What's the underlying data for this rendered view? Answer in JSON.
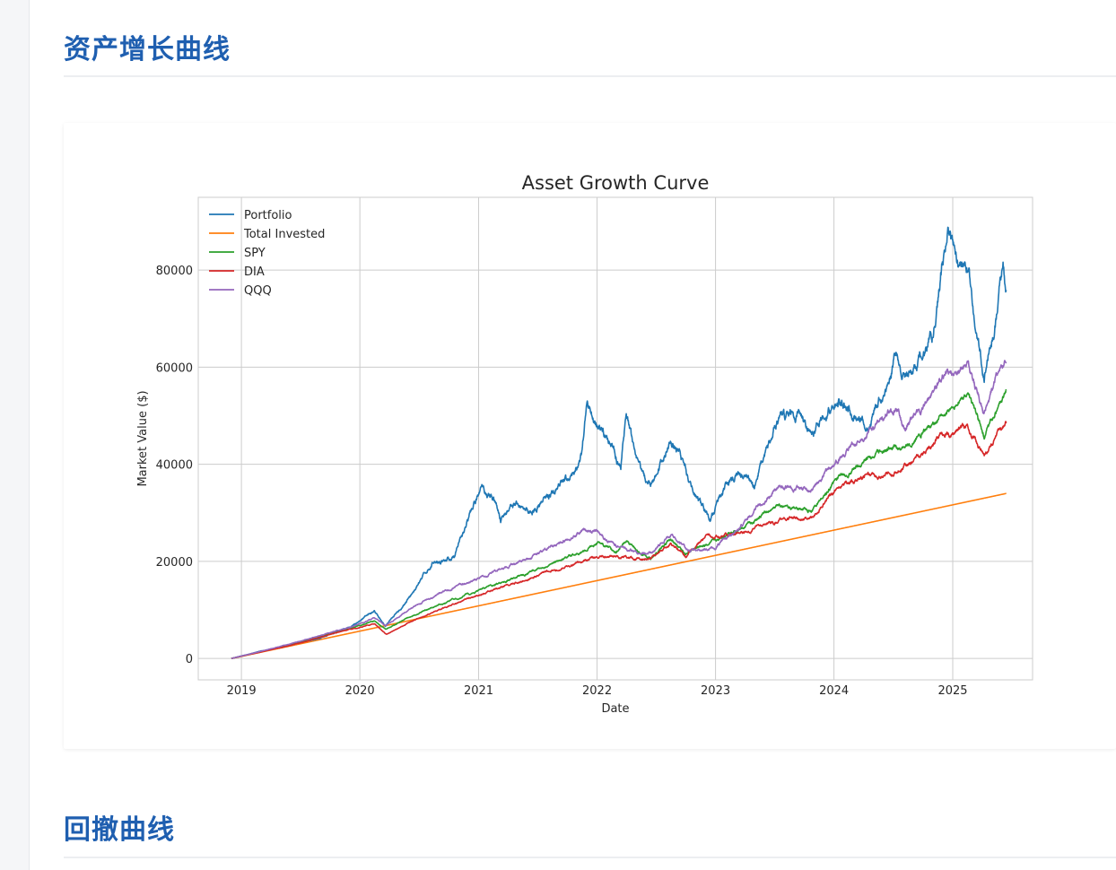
{
  "sections": [
    {
      "title": "资产增长曲线"
    },
    {
      "title": "回撤曲线"
    }
  ],
  "chart_data": {
    "type": "line",
    "title": "Asset Growth Curve",
    "xlabel": "Date",
    "ylabel": "Market Value ($)",
    "xlim": [
      "2018-08-21",
      "2025-09-04"
    ],
    "ylim": [
      -4400,
      95000
    ],
    "x_ticks": [
      "2019-01-01",
      "2020-01-01",
      "2021-01-01",
      "2022-01-01",
      "2023-01-01",
      "2024-01-01",
      "2025-01-01"
    ],
    "x_tick_labels": [
      "2019",
      "2020",
      "2021",
      "2022",
      "2023",
      "2024",
      "2025"
    ],
    "y_ticks": [
      0,
      20000,
      40000,
      60000,
      80000
    ],
    "y_tick_labels": [
      "0",
      "20000",
      "40000",
      "60000",
      "80000"
    ],
    "grid": true,
    "legend": "top-left",
    "series": [
      {
        "name": "Portfolio",
        "color": "#1f77b4",
        "noise": 0.012,
        "points": [
          [
            "2018-12-01",
            0
          ],
          [
            "2019-03-01",
            1500
          ],
          [
            "2019-06-01",
            2800
          ],
          [
            "2019-09-01",
            4200
          ],
          [
            "2019-12-01",
            6500
          ],
          [
            "2020-02-15",
            9800
          ],
          [
            "2020-03-20",
            6500
          ],
          [
            "2020-06-01",
            12500
          ],
          [
            "2020-08-15",
            20000
          ],
          [
            "2020-10-20",
            21000
          ],
          [
            "2020-12-15",
            31000
          ],
          [
            "2021-01-10",
            35000
          ],
          [
            "2021-02-20",
            33000
          ],
          [
            "2021-03-10",
            28500
          ],
          [
            "2021-04-15",
            32000
          ],
          [
            "2021-06-15",
            30500
          ],
          [
            "2021-08-15",
            34000
          ],
          [
            "2021-10-15",
            37000
          ],
          [
            "2021-11-15",
            42000
          ],
          [
            "2021-12-01",
            52000
          ],
          [
            "2022-01-15",
            47000
          ],
          [
            "2022-02-15",
            44000
          ],
          [
            "2022-03-15",
            40000
          ],
          [
            "2022-04-01",
            50500
          ],
          [
            "2022-05-01",
            40000
          ],
          [
            "2022-06-15",
            35000
          ],
          [
            "2022-08-15",
            45000
          ],
          [
            "2022-09-15",
            42000
          ],
          [
            "2022-10-15",
            36000
          ],
          [
            "2022-12-15",
            28500
          ],
          [
            "2023-02-01",
            36000
          ],
          [
            "2023-04-01",
            38500
          ],
          [
            "2023-05-01",
            36000
          ],
          [
            "2023-07-15",
            50000
          ],
          [
            "2023-09-15",
            50000
          ],
          [
            "2023-10-20",
            46000
          ],
          [
            "2023-12-01",
            50500
          ],
          [
            "2024-01-15",
            53000
          ],
          [
            "2024-03-15",
            51000
          ],
          [
            "2024-04-20",
            48000
          ],
          [
            "2024-06-01",
            54000
          ],
          [
            "2024-07-10",
            63000
          ],
          [
            "2024-08-05",
            57000
          ],
          [
            "2024-09-15",
            60000
          ],
          [
            "2024-11-01",
            67000
          ],
          [
            "2024-12-16",
            89000
          ],
          [
            "2025-01-15",
            82000
          ],
          [
            "2025-02-20",
            80000
          ],
          [
            "2025-03-15",
            66000
          ],
          [
            "2025-04-08",
            58000
          ],
          [
            "2025-05-15",
            72000
          ],
          [
            "2025-06-05",
            80500
          ],
          [
            "2025-06-15",
            75000
          ]
        ]
      },
      {
        "name": "Total Invested",
        "color": "#ff7f0e",
        "noise": 0,
        "points": [
          [
            "2018-12-01",
            0
          ],
          [
            "2025-06-15",
            34000
          ]
        ]
      },
      {
        "name": "SPY",
        "color": "#2ca02c",
        "noise": 0.007,
        "points": [
          [
            "2018-12-01",
            0
          ],
          [
            "2019-06-01",
            2800
          ],
          [
            "2019-12-01",
            6200
          ],
          [
            "2020-02-15",
            7800
          ],
          [
            "2020-03-20",
            6000
          ],
          [
            "2020-06-01",
            8500
          ],
          [
            "2020-09-01",
            11000
          ],
          [
            "2021-01-01",
            14000
          ],
          [
            "2021-06-01",
            17500
          ],
          [
            "2021-12-01",
            22500
          ],
          [
            "2022-01-05",
            24000
          ],
          [
            "2022-03-01",
            22000
          ],
          [
            "2022-04-01",
            24000
          ],
          [
            "2022-06-15",
            20500
          ],
          [
            "2022-08-15",
            24500
          ],
          [
            "2022-10-01",
            21500
          ],
          [
            "2022-12-01",
            23500
          ],
          [
            "2023-03-01",
            26000
          ],
          [
            "2023-07-15",
            31500
          ],
          [
            "2023-10-25",
            30500
          ],
          [
            "2023-12-31",
            36000
          ],
          [
            "2024-03-31",
            40500
          ],
          [
            "2024-06-30",
            44000
          ],
          [
            "2024-08-05",
            43000
          ],
          [
            "2024-09-30",
            46500
          ],
          [
            "2024-12-31",
            52000
          ],
          [
            "2025-02-15",
            54500
          ],
          [
            "2025-04-08",
            46000
          ],
          [
            "2025-05-15",
            51000
          ],
          [
            "2025-06-15",
            55000
          ]
        ]
      },
      {
        "name": "DIA",
        "color": "#d62728",
        "noise": 0.007,
        "points": [
          [
            "2018-12-01",
            0
          ],
          [
            "2019-06-01",
            2700
          ],
          [
            "2019-12-01",
            6000
          ],
          [
            "2020-02-15",
            7200
          ],
          [
            "2020-03-23",
            5000
          ],
          [
            "2020-06-01",
            7500
          ],
          [
            "2020-09-01",
            10000
          ],
          [
            "2021-01-01",
            13000
          ],
          [
            "2021-06-01",
            16500
          ],
          [
            "2021-12-31",
            21000
          ],
          [
            "2022-03-01",
            21000
          ],
          [
            "2022-06-15",
            20500
          ],
          [
            "2022-08-15",
            23500
          ],
          [
            "2022-10-01",
            21000
          ],
          [
            "2022-12-01",
            25000
          ],
          [
            "2023-03-01",
            25500
          ],
          [
            "2023-07-31",
            28500
          ],
          [
            "2023-10-25",
            29000
          ],
          [
            "2023-12-31",
            34500
          ],
          [
            "2024-03-31",
            37500
          ],
          [
            "2024-06-30",
            38000
          ],
          [
            "2024-09-30",
            42000
          ],
          [
            "2024-11-30",
            46000
          ],
          [
            "2024-12-31",
            46500
          ],
          [
            "2025-02-15",
            47500
          ],
          [
            "2025-04-08",
            42000
          ],
          [
            "2025-05-15",
            46000
          ],
          [
            "2025-06-15",
            48500
          ]
        ]
      },
      {
        "name": "QQQ",
        "color": "#9467bd",
        "noise": 0.008,
        "points": [
          [
            "2018-12-01",
            0
          ],
          [
            "2019-06-01",
            3000
          ],
          [
            "2019-12-01",
            6500
          ],
          [
            "2020-02-15",
            8300
          ],
          [
            "2020-03-20",
            6800
          ],
          [
            "2020-06-01",
            10000
          ],
          [
            "2020-09-01",
            13500
          ],
          [
            "2021-01-01",
            16500
          ],
          [
            "2021-06-01",
            20500
          ],
          [
            "2021-11-20",
            26500
          ],
          [
            "2022-01-05",
            26000
          ],
          [
            "2022-03-15",
            22500
          ],
          [
            "2022-06-15",
            21500
          ],
          [
            "2022-08-15",
            25500
          ],
          [
            "2022-10-15",
            22000
          ],
          [
            "2022-12-31",
            23000
          ],
          [
            "2023-03-31",
            28000
          ],
          [
            "2023-07-15",
            35500
          ],
          [
            "2023-10-25",
            34500
          ],
          [
            "2023-12-31",
            40500
          ],
          [
            "2024-03-31",
            45500
          ],
          [
            "2024-07-10",
            52000
          ],
          [
            "2024-08-05",
            47500
          ],
          [
            "2024-09-30",
            51500
          ],
          [
            "2024-12-15",
            59500
          ],
          [
            "2025-02-15",
            61000
          ],
          [
            "2025-04-08",
            50500
          ],
          [
            "2025-05-15",
            58000
          ],
          [
            "2025-06-15",
            62500
          ]
        ]
      }
    ]
  }
}
